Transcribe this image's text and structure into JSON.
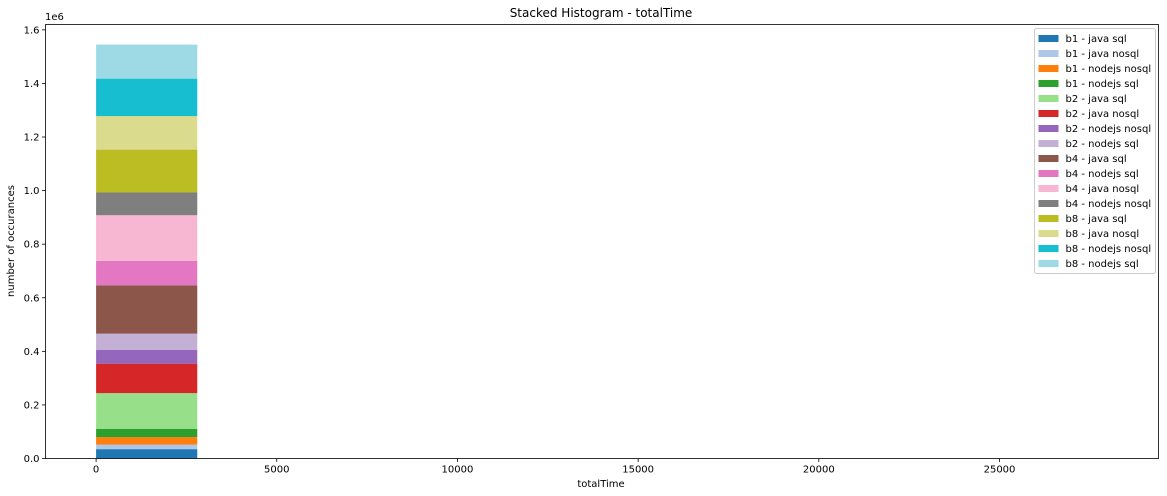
{
  "chart_data": {
    "type": "bar",
    "title": "Stacked Histogram - totalTime",
    "xlabel": "totalTime",
    "ylabel": "number of occurances",
    "y_offset_label": "1e6",
    "xlim": [
      -1400,
      29400
    ],
    "ylim": [
      0,
      1620000
    ],
    "x_ticks": [
      0,
      5000,
      10000,
      15000,
      20000,
      25000
    ],
    "y_ticks": [
      0.0,
      0.2,
      0.4,
      0.6,
      0.8,
      1.0,
      1.2,
      1.4,
      1.6
    ],
    "bin": [
      0,
      2800
    ],
    "grid": false,
    "legend_position": "upper right",
    "series": [
      {
        "name": "b1 - java sql",
        "value": 35000,
        "color": "#1f77b4"
      },
      {
        "name": "b1 - java nosql",
        "value": 17000,
        "color": "#aec7e8"
      },
      {
        "name": "b1 - nodejs nosql",
        "value": 28000,
        "color": "#ff7f0e"
      },
      {
        "name": "b1 - nodejs sql",
        "value": 31000,
        "color": "#2ca02c"
      },
      {
        "name": "b2 - java sql",
        "value": 133000,
        "color": "#98df8a"
      },
      {
        "name": "b2 - java nosql",
        "value": 110000,
        "color": "#d62728"
      },
      {
        "name": "b2 - nodejs nosql",
        "value": 52000,
        "color": "#9467bd"
      },
      {
        "name": "b2 - nodejs sql",
        "value": 60000,
        "color": "#c5b0d5"
      },
      {
        "name": "b4 - java sql",
        "value": 180000,
        "color": "#8c564b"
      },
      {
        "name": "b4 - nodejs sql",
        "value": 92000,
        "color": "#e377c2"
      },
      {
        "name": "b4 - java nosql",
        "value": 170000,
        "color": "#f7b6d2"
      },
      {
        "name": "b4 - nodejs nosql",
        "value": 85000,
        "color": "#7f7f7f"
      },
      {
        "name": "b8 - java sql",
        "value": 160000,
        "color": "#bcbd22"
      },
      {
        "name": "b8 - java nosql",
        "value": 125000,
        "color": "#dbdb8d"
      },
      {
        "name": "b8 - nodejs nosql",
        "value": 140000,
        "color": "#17becf"
      },
      {
        "name": "b8 - nodejs sql",
        "value": 127000,
        "color": "#9edae5"
      }
    ]
  }
}
